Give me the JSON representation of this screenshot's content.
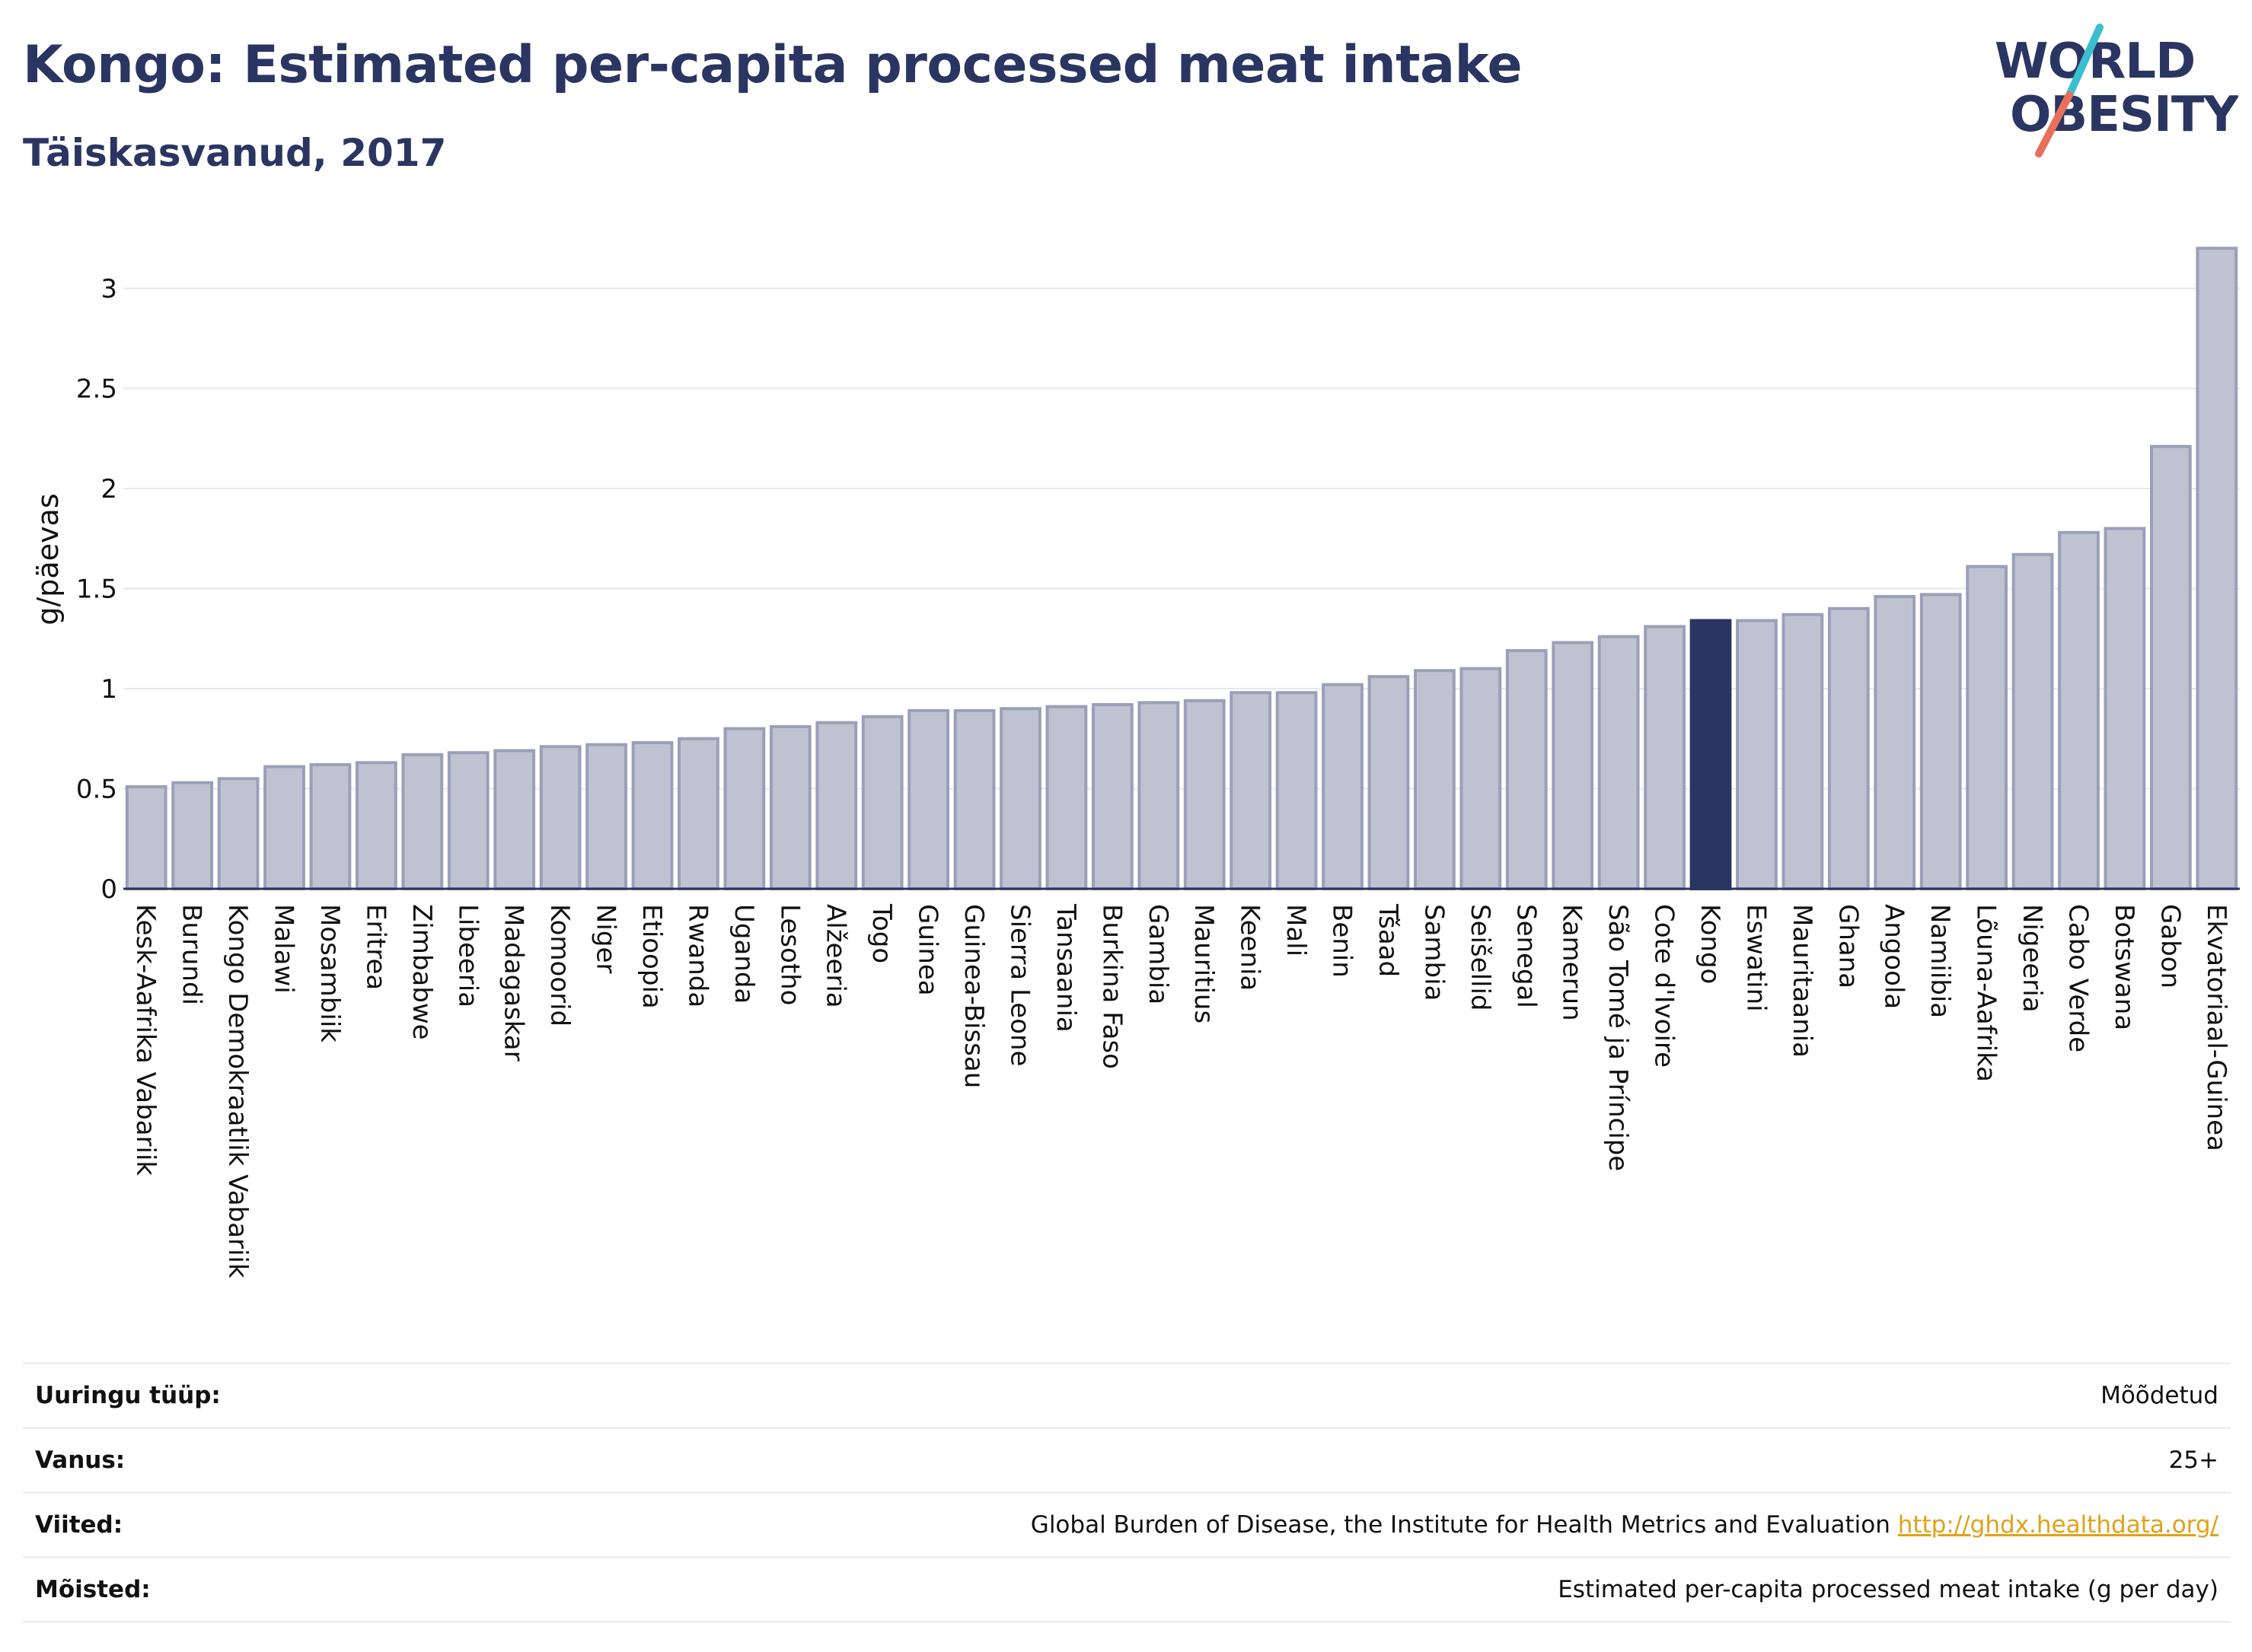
{
  "header": {
    "title": "Kongo: Estimated per-capita processed meat intake",
    "subtitle": "Täiskasvanud, 2017"
  },
  "logo": {
    "line1": "WORLD",
    "line2": "OBESITY",
    "text_color": "#2a3562",
    "slash_color_top": "#3bbfcf",
    "slash_color_bottom": "#e8705a"
  },
  "chart_data": {
    "type": "bar",
    "ylabel": "g/päevas",
    "ylim": [
      0,
      3.3
    ],
    "yticks": [
      0,
      0.5,
      1,
      1.5,
      2,
      2.5,
      3
    ],
    "ytick_labels": [
      "0",
      "0.5",
      "1",
      "1.5",
      "2",
      "2.5",
      "3"
    ],
    "grid": true,
    "highlight_category": "Kongo",
    "colors": {
      "bar": "#bfc3d1",
      "bar_edge": "#9aa0b8",
      "highlight": "#2a3562"
    },
    "categories": [
      "Kesk-Aafrika Vabariik",
      "Burundi",
      "Kongo Demokraatlik Vabariik",
      "Malawi",
      "Mosambiik",
      "Eritrea",
      "Zimbabwe",
      "Libeeria",
      "Madagaskar",
      "Komoorid",
      "Niger",
      "Etioopia",
      "Rwanda",
      "Uganda",
      "Lesotho",
      "Alžeeria",
      "Togo",
      "Guinea",
      "Guinea-Bissau",
      "Sierra Leone",
      "Tansaania",
      "Burkina Faso",
      "Gambia",
      "Mauritius",
      "Keenia",
      "Mali",
      "Benin",
      "Tšaad",
      "Sambia",
      "Seišellid",
      "Senegal",
      "Kamerun",
      "São Tomé ja Príncipe",
      "Cote d'Ivoire",
      "Kongo",
      "Eswatini",
      "Mauritaania",
      "Ghana",
      "Angoola",
      "Namiibia",
      "Lõuna-Aafrika",
      "Nigeeria",
      "Cabo Verde",
      "Botswana",
      "Gabon",
      "Ekvatoriaal-Guinea"
    ],
    "values": [
      0.51,
      0.53,
      0.55,
      0.61,
      0.62,
      0.63,
      0.67,
      0.68,
      0.69,
      0.71,
      0.72,
      0.73,
      0.75,
      0.8,
      0.81,
      0.83,
      0.86,
      0.89,
      0.89,
      0.9,
      0.91,
      0.92,
      0.93,
      0.94,
      0.98,
      0.98,
      1.02,
      1.06,
      1.09,
      1.1,
      1.19,
      1.23,
      1.26,
      1.31,
      1.34,
      1.34,
      1.37,
      1.4,
      1.46,
      1.47,
      1.61,
      1.67,
      1.78,
      1.8,
      2.21,
      3.2
    ]
  },
  "meta": [
    {
      "label": "Uuringu tüüp:",
      "value": "Mõõdetud"
    },
    {
      "label": "Vanus:",
      "value": "25+"
    },
    {
      "label": "Viited:",
      "value": "Global Burden of Disease, the Institute for Health Metrics and Evaluation",
      "link": "http://ghdx.healthdata.org/"
    },
    {
      "label": "Mõisted:",
      "value": "Estimated per-capita processed meat intake (g per day)"
    }
  ]
}
